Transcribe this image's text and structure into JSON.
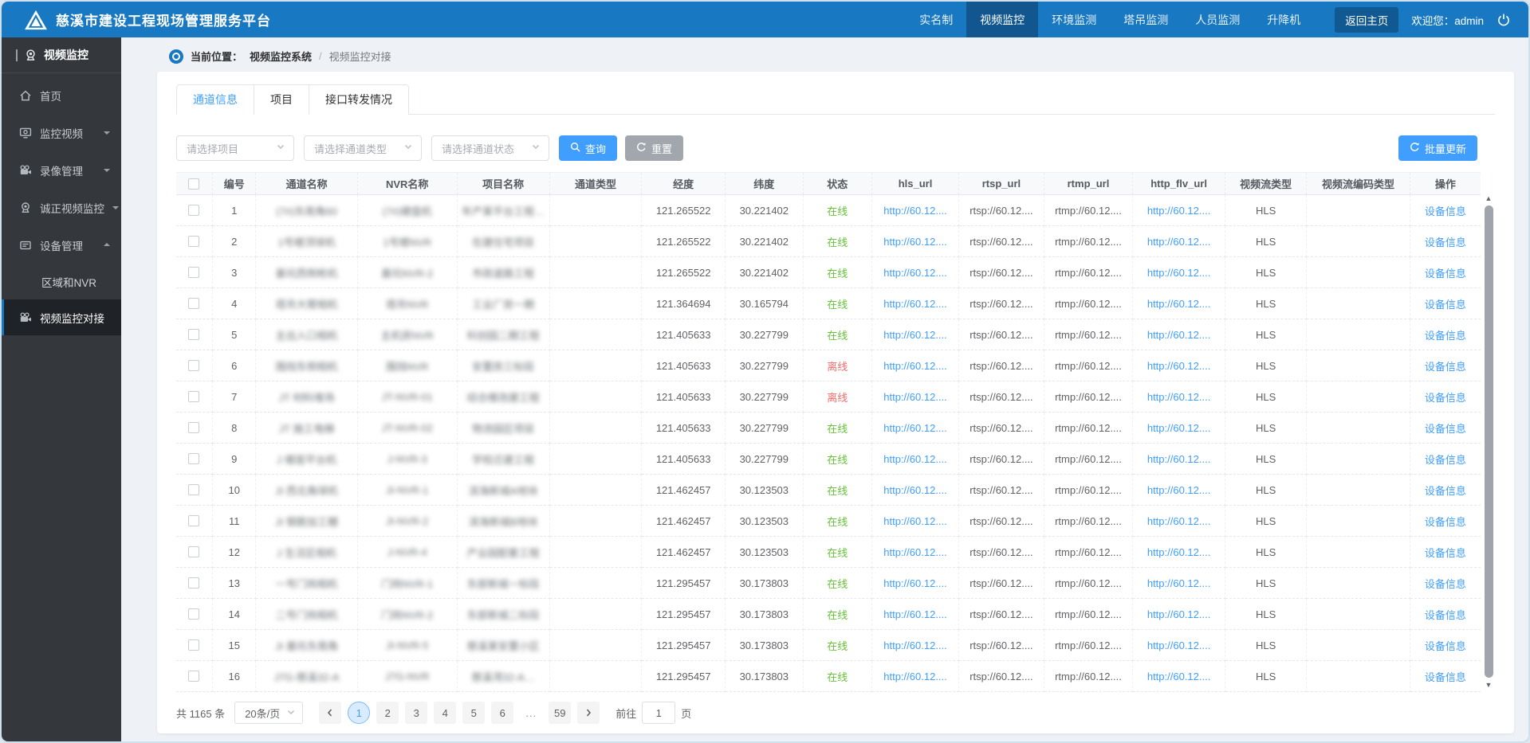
{
  "app": {
    "title": "慈溪市建设工程现场管理服务平台",
    "nav_items": [
      "实名制",
      "视频监控",
      "环境监测",
      "塔吊监测",
      "人员监测",
      "升降机"
    ],
    "active_nav": "视频监控",
    "back_home": "返回主页",
    "welcome": "欢迎您：",
    "username": "admin"
  },
  "sidebar": {
    "header": "视频监控",
    "menu": [
      {
        "label": "首页",
        "icon": "home-icon"
      },
      {
        "label": "监控视频",
        "icon": "monitor-icon",
        "arrow": "down"
      },
      {
        "label": "录像管理",
        "icon": "film-camera-icon",
        "arrow": "down"
      },
      {
        "label": "诚正视频监控",
        "icon": "webcam-icon",
        "arrow": "down"
      },
      {
        "label": "设备管理",
        "icon": "device-icon",
        "arrow": "up",
        "children": [
          {
            "label": "区域和NVR",
            "active": false
          },
          {
            "label": "视频监控对接",
            "active": true,
            "icon": "film-camera-icon"
          }
        ]
      }
    ]
  },
  "breadcrumb": {
    "prefix": "当前位置：",
    "root": "视频监控系统",
    "sep": "/",
    "current": "视频监控对接"
  },
  "tabs": [
    {
      "label": "通道信息",
      "active": true
    },
    {
      "label": "项目",
      "active": false
    },
    {
      "label": "接口转发情况",
      "active": false
    }
  ],
  "filters": {
    "selects": [
      "请选择项目",
      "请选择通道类型",
      "请选择通道状态"
    ],
    "search_label": "查询",
    "reset_label": "重置",
    "batch_update_label": "批量更新"
  },
  "table": {
    "columns": [
      "编号",
      "通道名称",
      "NVR名称",
      "项目名称",
      "通道类型",
      "经度",
      "纬度",
      "状态",
      "hls_url",
      "rtsp_url",
      "rtmp_url",
      "http_flv_url",
      "视频流类型",
      "视频流编码类型",
      "操作"
    ],
    "blurred_columns": [
      "通道名称",
      "NVR名称",
      "项目名称"
    ],
    "rows": [
      {
        "no": "1",
        "channel": "(7#)东南角60",
        "nvr": "(7#)硬盘机",
        "project": "年产某平台工程…",
        "type": "",
        "lng": "121.265522",
        "lat": "30.221402",
        "status": "在线",
        "hls": "http://60.12....",
        "rtsp": "rtsp://60.12....",
        "rtmp": "rtmp://60.12....",
        "flv": "http://60.12....",
        "stream": "HLS",
        "codec": "",
        "action": "设备信息"
      },
      {
        "no": "2",
        "channel": "1号楼顶球机",
        "nvr": "1号楼NVR",
        "project": "在建住宅项目",
        "type": "",
        "lng": "121.265522",
        "lat": "30.221402",
        "status": "在线",
        "hls": "http://60.12....",
        "rtsp": "rtsp://60.12....",
        "rtmp": "rtmp://60.12....",
        "flv": "http://60.12....",
        "stream": "HLS",
        "codec": "",
        "action": "设备信息"
      },
      {
        "no": "3",
        "channel": "基坑西侧枪机",
        "nvr": "基坑NVR-2",
        "project": "市政道路工程",
        "type": "",
        "lng": "121.265522",
        "lat": "30.221402",
        "status": "在线",
        "hls": "http://60.12....",
        "rtsp": "rtsp://60.12....",
        "rtmp": "rtmp://60.12....",
        "flv": "http://60.12....",
        "stream": "HLS",
        "codec": "",
        "action": "设备信息"
      },
      {
        "no": "4",
        "channel": "塔吊大臂相机",
        "nvr": "塔吊NVR",
        "project": "工业厂房一期",
        "type": "",
        "lng": "121.364694",
        "lat": "30.165794",
        "status": "在线",
        "hls": "http://60.12....",
        "rtsp": "rtsp://60.12....",
        "rtmp": "rtmp://60.12....",
        "flv": "http://60.12....",
        "stream": "HLS",
        "codec": "",
        "action": "设备信息"
      },
      {
        "no": "5",
        "channel": "主出入口相机",
        "nvr": "主机房NVR",
        "project": "科创园二期工程",
        "type": "",
        "lng": "121.405633",
        "lat": "30.227799",
        "status": "在线",
        "hls": "http://60.12....",
        "rtsp": "rtsp://60.12....",
        "rtmp": "rtmp://60.12....",
        "flv": "http://60.12....",
        "stream": "HLS",
        "codec": "",
        "action": "设备信息"
      },
      {
        "no": "6",
        "channel": "围挡东侧相机",
        "nvr": "围挡NVR",
        "project": "安置房三标段",
        "type": "",
        "lng": "121.405633",
        "lat": "30.227799",
        "status": "离线",
        "hls": "http://60.12....",
        "rtsp": "rtsp://60.12....",
        "rtmp": "rtmp://60.12....",
        "flv": "http://60.12....",
        "stream": "HLS",
        "codec": "",
        "action": "设备信息"
      },
      {
        "no": "7",
        "channel": "JT 材料堆场",
        "nvr": "JT-NVR-01",
        "project": "综合楼改建工程",
        "type": "",
        "lng": "121.405633",
        "lat": "30.227799",
        "status": "离线",
        "hls": "http://60.12....",
        "rtsp": "rtsp://60.12....",
        "rtmp": "rtmp://60.12....",
        "flv": "http://60.12....",
        "stream": "HLS",
        "codec": "",
        "action": "设备信息"
      },
      {
        "no": "8",
        "channel": "JT 施工电梯",
        "nvr": "JT-NVR-02",
        "project": "物流园区项目",
        "type": "",
        "lng": "121.405633",
        "lat": "30.227799",
        "status": "在线",
        "hls": "http://60.12....",
        "rtsp": "rtsp://60.12....",
        "rtmp": "rtmp://60.12....",
        "flv": "http://60.12....",
        "stream": "HLS",
        "codec": "",
        "action": "设备信息"
      },
      {
        "no": "9",
        "channel": "J 楼层平台机",
        "nvr": "J-NVR-3",
        "project": "学校迁建工程",
        "type": "",
        "lng": "121.405633",
        "lat": "30.227799",
        "status": "在线",
        "hls": "http://60.12....",
        "rtsp": "rtsp://60.12....",
        "rtmp": "rtmp://60.12....",
        "flv": "http://60.12....",
        "stream": "HLS",
        "codec": "",
        "action": "设备信息"
      },
      {
        "no": "10",
        "channel": "JI 西北角球机",
        "nvr": "JI-NVR-1",
        "project": "滨海新城A地块",
        "type": "",
        "lng": "121.462457",
        "lat": "30.123503",
        "status": "在线",
        "hls": "http://60.12....",
        "rtsp": "rtsp://60.12....",
        "rtmp": "rtmp://60.12....",
        "flv": "http://60.12....",
        "stream": "HLS",
        "codec": "",
        "action": "设备信息"
      },
      {
        "no": "11",
        "channel": "JI 钢筋加工棚",
        "nvr": "JI-NVR-2",
        "project": "滨海新城B地块",
        "type": "",
        "lng": "121.462457",
        "lat": "30.123503",
        "status": "在线",
        "hls": "http://60.12....",
        "rtsp": "rtsp://60.12....",
        "rtmp": "rtmp://60.12....",
        "flv": "http://60.12....",
        "stream": "HLS",
        "codec": "",
        "action": "设备信息"
      },
      {
        "no": "12",
        "channel": "J 生活区相机",
        "nvr": "J-NVR-4",
        "project": "产业园配套工程",
        "type": "",
        "lng": "121.462457",
        "lat": "30.123503",
        "status": "在线",
        "hls": "http://60.12....",
        "rtsp": "rtsp://60.12....",
        "rtmp": "rtmp://60.12....",
        "flv": "http://60.12....",
        "stream": "HLS",
        "codec": "",
        "action": "设备信息"
      },
      {
        "no": "13",
        "channel": "一号门岗相机",
        "nvr": "门岗NVR-1",
        "project": "东部新城一标段",
        "type": "",
        "lng": "121.295457",
        "lat": "30.173803",
        "status": "在线",
        "hls": "http://60.12....",
        "rtsp": "rtsp://60.12....",
        "rtmp": "rtmp://60.12....",
        "flv": "http://60.12....",
        "stream": "HLS",
        "codec": "",
        "action": "设备信息"
      },
      {
        "no": "14",
        "channel": "二号门岗相机",
        "nvr": "门岗NVR-2",
        "project": "东部新城二标段",
        "type": "",
        "lng": "121.295457",
        "lat": "30.173803",
        "status": "在线",
        "hls": "http://60.12....",
        "rtsp": "rtsp://60.12....",
        "rtmp": "rtmp://60.12....",
        "flv": "http://60.12....",
        "stream": "HLS",
        "codec": "",
        "action": "设备信息"
      },
      {
        "no": "15",
        "channel": "JI 基坑东南角",
        "nvr": "JI-NVR-5",
        "project": "慈溪某安置小区",
        "type": "",
        "lng": "121.295457",
        "lat": "30.173803",
        "status": "在线",
        "hls": "http://60.12....",
        "rtsp": "rtsp://60.12....",
        "rtmp": "rtmp://60.12....",
        "flv": "http://60.12....",
        "stream": "HLS",
        "codec": "",
        "action": "设备信息"
      },
      {
        "no": "16",
        "channel": "J7G-慈溪32-A",
        "nvr": "J7G-NVR",
        "project": "慈溪湾32-A…",
        "type": "",
        "lng": "121.295457",
        "lat": "30.173803",
        "status": "在线",
        "hls": "http://60.12....",
        "rtsp": "rtsp://60.12....",
        "rtmp": "rtmp://60.12....",
        "flv": "http://60.12....",
        "stream": "HLS",
        "codec": "",
        "action": "设备信息"
      }
    ]
  },
  "pagination": {
    "total_label": "共 1165 条",
    "page_size": "20条/页",
    "pages": [
      "1",
      "2",
      "3",
      "4",
      "5",
      "6",
      "...",
      "59"
    ],
    "active_page": "1",
    "goto_label": "前往",
    "goto_value": "1",
    "page_label": "页"
  },
  "colors": {
    "navbar_blue": "#1878c2",
    "accent_blue": "#409eff",
    "status_online": "#67c23a",
    "status_offline": "#f56c6c",
    "sidebar_dark": "#34383d"
  }
}
